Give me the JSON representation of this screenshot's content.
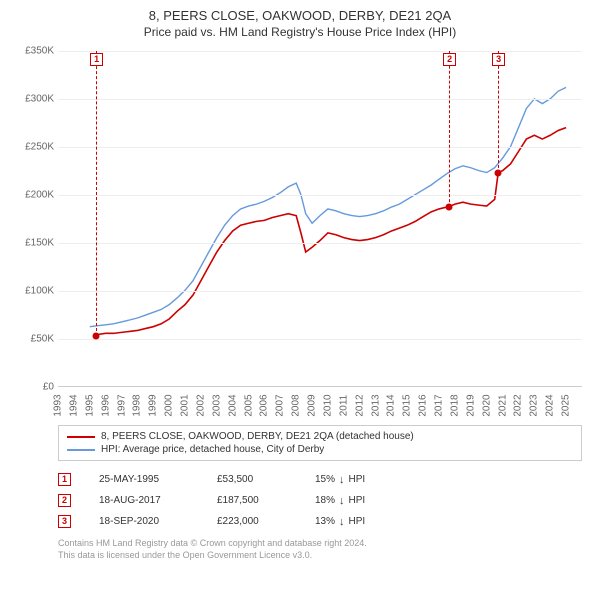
{
  "title": "8, PEERS CLOSE, OAKWOOD, DERBY, DE21 2QA",
  "subtitle": "Price paid vs. HM Land Registry's House Price Index (HPI)",
  "chart": {
    "type": "line",
    "background_color": "#ffffff",
    "grid_color": "#eeeeee",
    "axis_color": "#cccccc",
    "label_color": "#666666",
    "label_fontsize": 10,
    "title_fontsize": 13,
    "ylim": [
      0,
      350000
    ],
    "ytick_step": 50000,
    "yticks": [
      "£0",
      "£50K",
      "£100K",
      "£150K",
      "£200K",
      "£250K",
      "£300K",
      "£350K"
    ],
    "xlim": [
      1993,
      2026
    ],
    "xticks": [
      1993,
      1994,
      1995,
      1996,
      1997,
      1998,
      1999,
      2000,
      2001,
      2002,
      2003,
      2004,
      2005,
      2006,
      2007,
      2008,
      2009,
      2010,
      2011,
      2012,
      2013,
      2014,
      2015,
      2016,
      2017,
      2018,
      2019,
      2020,
      2021,
      2022,
      2023,
      2024,
      2025
    ],
    "series": [
      {
        "name": "price_paid",
        "label": "8, PEERS CLOSE, OAKWOOD, DERBY, DE21 2QA (detached house)",
        "color": "#cc0000",
        "line_width": 1.6,
        "points": [
          [
            1995.4,
            53500
          ],
          [
            1996.0,
            55000
          ],
          [
            1996.5,
            55000
          ],
          [
            1997.0,
            56000
          ],
          [
            1997.5,
            57000
          ],
          [
            1998.0,
            58000
          ],
          [
            1998.5,
            60000
          ],
          [
            1999.0,
            62000
          ],
          [
            1999.5,
            65000
          ],
          [
            2000.0,
            70000
          ],
          [
            2000.5,
            78000
          ],
          [
            2001.0,
            85000
          ],
          [
            2001.5,
            95000
          ],
          [
            2002.0,
            110000
          ],
          [
            2002.5,
            125000
          ],
          [
            2003.0,
            140000
          ],
          [
            2003.5,
            152000
          ],
          [
            2004.0,
            162000
          ],
          [
            2004.5,
            168000
          ],
          [
            2005.0,
            170000
          ],
          [
            2005.5,
            172000
          ],
          [
            2006.0,
            173000
          ],
          [
            2006.5,
            176000
          ],
          [
            2007.0,
            178000
          ],
          [
            2007.5,
            180000
          ],
          [
            2008.0,
            178000
          ],
          [
            2008.3,
            160000
          ],
          [
            2008.6,
            140000
          ],
          [
            2009.0,
            145000
          ],
          [
            2009.5,
            152000
          ],
          [
            2010.0,
            160000
          ],
          [
            2010.5,
            158000
          ],
          [
            2011.0,
            155000
          ],
          [
            2011.5,
            153000
          ],
          [
            2012.0,
            152000
          ],
          [
            2012.5,
            153000
          ],
          [
            2013.0,
            155000
          ],
          [
            2013.5,
            158000
          ],
          [
            2014.0,
            162000
          ],
          [
            2014.5,
            165000
          ],
          [
            2015.0,
            168000
          ],
          [
            2015.5,
            172000
          ],
          [
            2016.0,
            177000
          ],
          [
            2016.5,
            182000
          ],
          [
            2017.0,
            185000
          ],
          [
            2017.63,
            187500
          ],
          [
            2018.0,
            190000
          ],
          [
            2018.5,
            192000
          ],
          [
            2019.0,
            190000
          ],
          [
            2019.5,
            189000
          ],
          [
            2020.0,
            188000
          ],
          [
            2020.5,
            195000
          ],
          [
            2020.72,
            223000
          ],
          [
            2021.0,
            225000
          ],
          [
            2021.5,
            232000
          ],
          [
            2022.0,
            245000
          ],
          [
            2022.5,
            258000
          ],
          [
            2023.0,
            262000
          ],
          [
            2023.5,
            258000
          ],
          [
            2024.0,
            262000
          ],
          [
            2024.5,
            267000
          ],
          [
            2025.0,
            270000
          ]
        ]
      },
      {
        "name": "hpi",
        "label": "HPI: Average price, detached house, City of Derby",
        "color": "#6699dd",
        "line_width": 1.4,
        "points": [
          [
            1995.0,
            62000
          ],
          [
            1995.5,
            63000
          ],
          [
            1996.0,
            64000
          ],
          [
            1996.5,
            65000
          ],
          [
            1997.0,
            67000
          ],
          [
            1997.5,
            69000
          ],
          [
            1998.0,
            71000
          ],
          [
            1998.5,
            74000
          ],
          [
            1999.0,
            77000
          ],
          [
            1999.5,
            80000
          ],
          [
            2000.0,
            85000
          ],
          [
            2000.5,
            92000
          ],
          [
            2001.0,
            100000
          ],
          [
            2001.5,
            110000
          ],
          [
            2002.0,
            125000
          ],
          [
            2002.5,
            140000
          ],
          [
            2003.0,
            155000
          ],
          [
            2003.5,
            168000
          ],
          [
            2004.0,
            178000
          ],
          [
            2004.5,
            185000
          ],
          [
            2005.0,
            188000
          ],
          [
            2005.5,
            190000
          ],
          [
            2006.0,
            193000
          ],
          [
            2006.5,
            197000
          ],
          [
            2007.0,
            202000
          ],
          [
            2007.5,
            208000
          ],
          [
            2008.0,
            212000
          ],
          [
            2008.3,
            200000
          ],
          [
            2008.6,
            180000
          ],
          [
            2009.0,
            170000
          ],
          [
            2009.5,
            178000
          ],
          [
            2010.0,
            185000
          ],
          [
            2010.5,
            183000
          ],
          [
            2011.0,
            180000
          ],
          [
            2011.5,
            178000
          ],
          [
            2012.0,
            177000
          ],
          [
            2012.5,
            178000
          ],
          [
            2013.0,
            180000
          ],
          [
            2013.5,
            183000
          ],
          [
            2014.0,
            187000
          ],
          [
            2014.5,
            190000
          ],
          [
            2015.0,
            195000
          ],
          [
            2015.5,
            200000
          ],
          [
            2016.0,
            205000
          ],
          [
            2016.5,
            210000
          ],
          [
            2017.0,
            216000
          ],
          [
            2017.5,
            222000
          ],
          [
            2018.0,
            227000
          ],
          [
            2018.5,
            230000
          ],
          [
            2019.0,
            228000
          ],
          [
            2019.5,
            225000
          ],
          [
            2020.0,
            223000
          ],
          [
            2020.5,
            228000
          ],
          [
            2021.0,
            238000
          ],
          [
            2021.5,
            250000
          ],
          [
            2022.0,
            270000
          ],
          [
            2022.5,
            290000
          ],
          [
            2023.0,
            300000
          ],
          [
            2023.5,
            295000
          ],
          [
            2024.0,
            300000
          ],
          [
            2024.5,
            308000
          ],
          [
            2025.0,
            312000
          ]
        ]
      }
    ],
    "event_markers": [
      {
        "index": "1",
        "year": 1995.4,
        "price": 53500,
        "color": "#cc0000"
      },
      {
        "index": "2",
        "year": 2017.63,
        "price": 187500,
        "color": "#cc0000"
      },
      {
        "index": "3",
        "year": 2020.72,
        "price": 223000,
        "color": "#cc0000"
      }
    ]
  },
  "legend": {
    "rows": [
      {
        "color": "#cc0000",
        "label": "8, PEERS CLOSE, OAKWOOD, DERBY, DE21 2QA (detached house)"
      },
      {
        "color": "#6699dd",
        "label": "HPI: Average price, detached house, City of Derby"
      }
    ]
  },
  "events": {
    "hpi_suffix": "HPI",
    "arrow": "↓",
    "rows": [
      {
        "index": "1",
        "date": "25-MAY-1995",
        "price": "£53,500",
        "pct": "15%",
        "color": "#cc0000"
      },
      {
        "index": "2",
        "date": "18-AUG-2017",
        "price": "£187,500",
        "pct": "18%",
        "color": "#cc0000"
      },
      {
        "index": "3",
        "date": "18-SEP-2020",
        "price": "£223,000",
        "pct": "13%",
        "color": "#cc0000"
      }
    ]
  },
  "footer": {
    "line1": "Contains HM Land Registry data © Crown copyright and database right 2024.",
    "line2": "This data is licensed under the Open Government Licence v3.0."
  }
}
